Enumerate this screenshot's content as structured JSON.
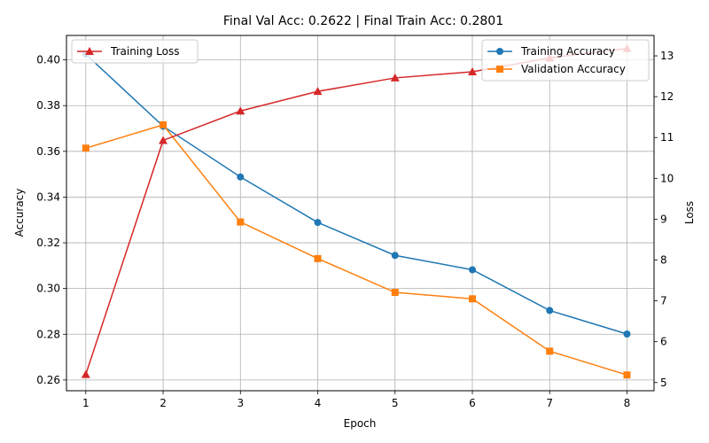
{
  "chart_data": {
    "type": "line",
    "title": "Final Val Acc: 0.2622 | Final Train Acc: 0.2801",
    "xlabel": "Epoch",
    "ylabel_left": "Accuracy",
    "ylabel_right": "Loss",
    "x": [
      1,
      2,
      3,
      4,
      5,
      6,
      7,
      8
    ],
    "xlim": [
      0.75,
      8.35
    ],
    "ylim_left": [
      0.2553,
      0.4107
    ],
    "ylim_right": [
      4.8,
      13.5
    ],
    "yticks_left": [
      "0.26",
      "0.28",
      "0.30",
      "0.32",
      "0.34",
      "0.36",
      "0.38",
      "0.40"
    ],
    "yticks_right": [
      "5",
      "6",
      "7",
      "8",
      "9",
      "10",
      "11",
      "12",
      "13"
    ],
    "grid": true,
    "legend_left_placement": "top-left",
    "legend_right_placement": "top-right",
    "series": [
      {
        "name": "Training Accuracy",
        "axis": "left",
        "marker": "circle",
        "color": "#1f77b4",
        "values": [
          0.4025,
          0.371,
          0.3488,
          0.3289,
          0.3145,
          0.3082,
          0.2904,
          0.2801
        ]
      },
      {
        "name": "Validation Accuracy",
        "axis": "left",
        "marker": "square",
        "color": "#ff7f0e",
        "values": [
          0.3614,
          0.3716,
          0.3291,
          0.3131,
          0.2983,
          0.2955,
          0.2726,
          0.2622
        ]
      },
      {
        "name": "Training Loss",
        "axis": "right",
        "marker": "triangle",
        "color": "#d62728",
        "values": [
          5.2,
          10.93,
          11.65,
          12.13,
          12.46,
          12.61,
          12.95,
          13.18
        ]
      }
    ]
  }
}
